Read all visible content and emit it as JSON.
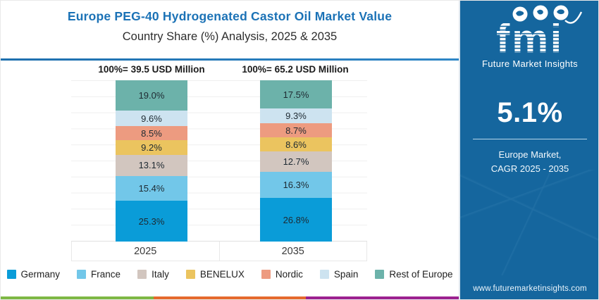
{
  "header": {
    "title": "Europe PEG-40 Hydrogenated Castor Oil Market Value",
    "subtitle": "Country Share (%) Analysis, 2025 & 2035"
  },
  "chart_data": {
    "type": "bar",
    "subtype": "stacked-100-percent",
    "categories": [
      "2025",
      "2035"
    ],
    "totals": [
      "100%= 39.5 USD Million",
      "100%= 65.2 USD Million"
    ],
    "unit": "%",
    "grid": "horizontal-light",
    "legend_position": "bottom",
    "series": [
      {
        "name": "Germany",
        "color": "#0a9cd8",
        "values": [
          25.3,
          26.8
        ]
      },
      {
        "name": "France",
        "color": "#72c7e9",
        "values": [
          15.4,
          16.3
        ]
      },
      {
        "name": "Italy",
        "color": "#d2c6bf",
        "values": [
          13.1,
          12.7
        ]
      },
      {
        "name": "BENELUX",
        "color": "#ebc45f",
        "values": [
          9.2,
          8.6
        ]
      },
      {
        "name": "Nordic",
        "color": "#ed9b80",
        "values": [
          8.5,
          8.7
        ]
      },
      {
        "name": "Spain",
        "color": "#cde3f0",
        "values": [
          9.6,
          9.3
        ]
      },
      {
        "name": "Rest of Europe",
        "color": "#6cb2aa",
        "values": [
          19.0,
          17.5
        ]
      }
    ]
  },
  "panel": {
    "logo_text": "fmi",
    "logo_subtext": "Future Market Insights",
    "cagr_value": "5.1%",
    "cagr_label_line1": "Europe Market,",
    "cagr_label_line2": "CAGR 2025 - 2035",
    "website": "www.futuremarketinsights.com",
    "background_color": "#15669e"
  },
  "footer_stripe_colors": [
    "#7eb844",
    "#e56a2e",
    "#9c2190"
  ],
  "accent": {
    "title_color": "#1b72b6",
    "header_rule_color": "#2e86c6"
  }
}
